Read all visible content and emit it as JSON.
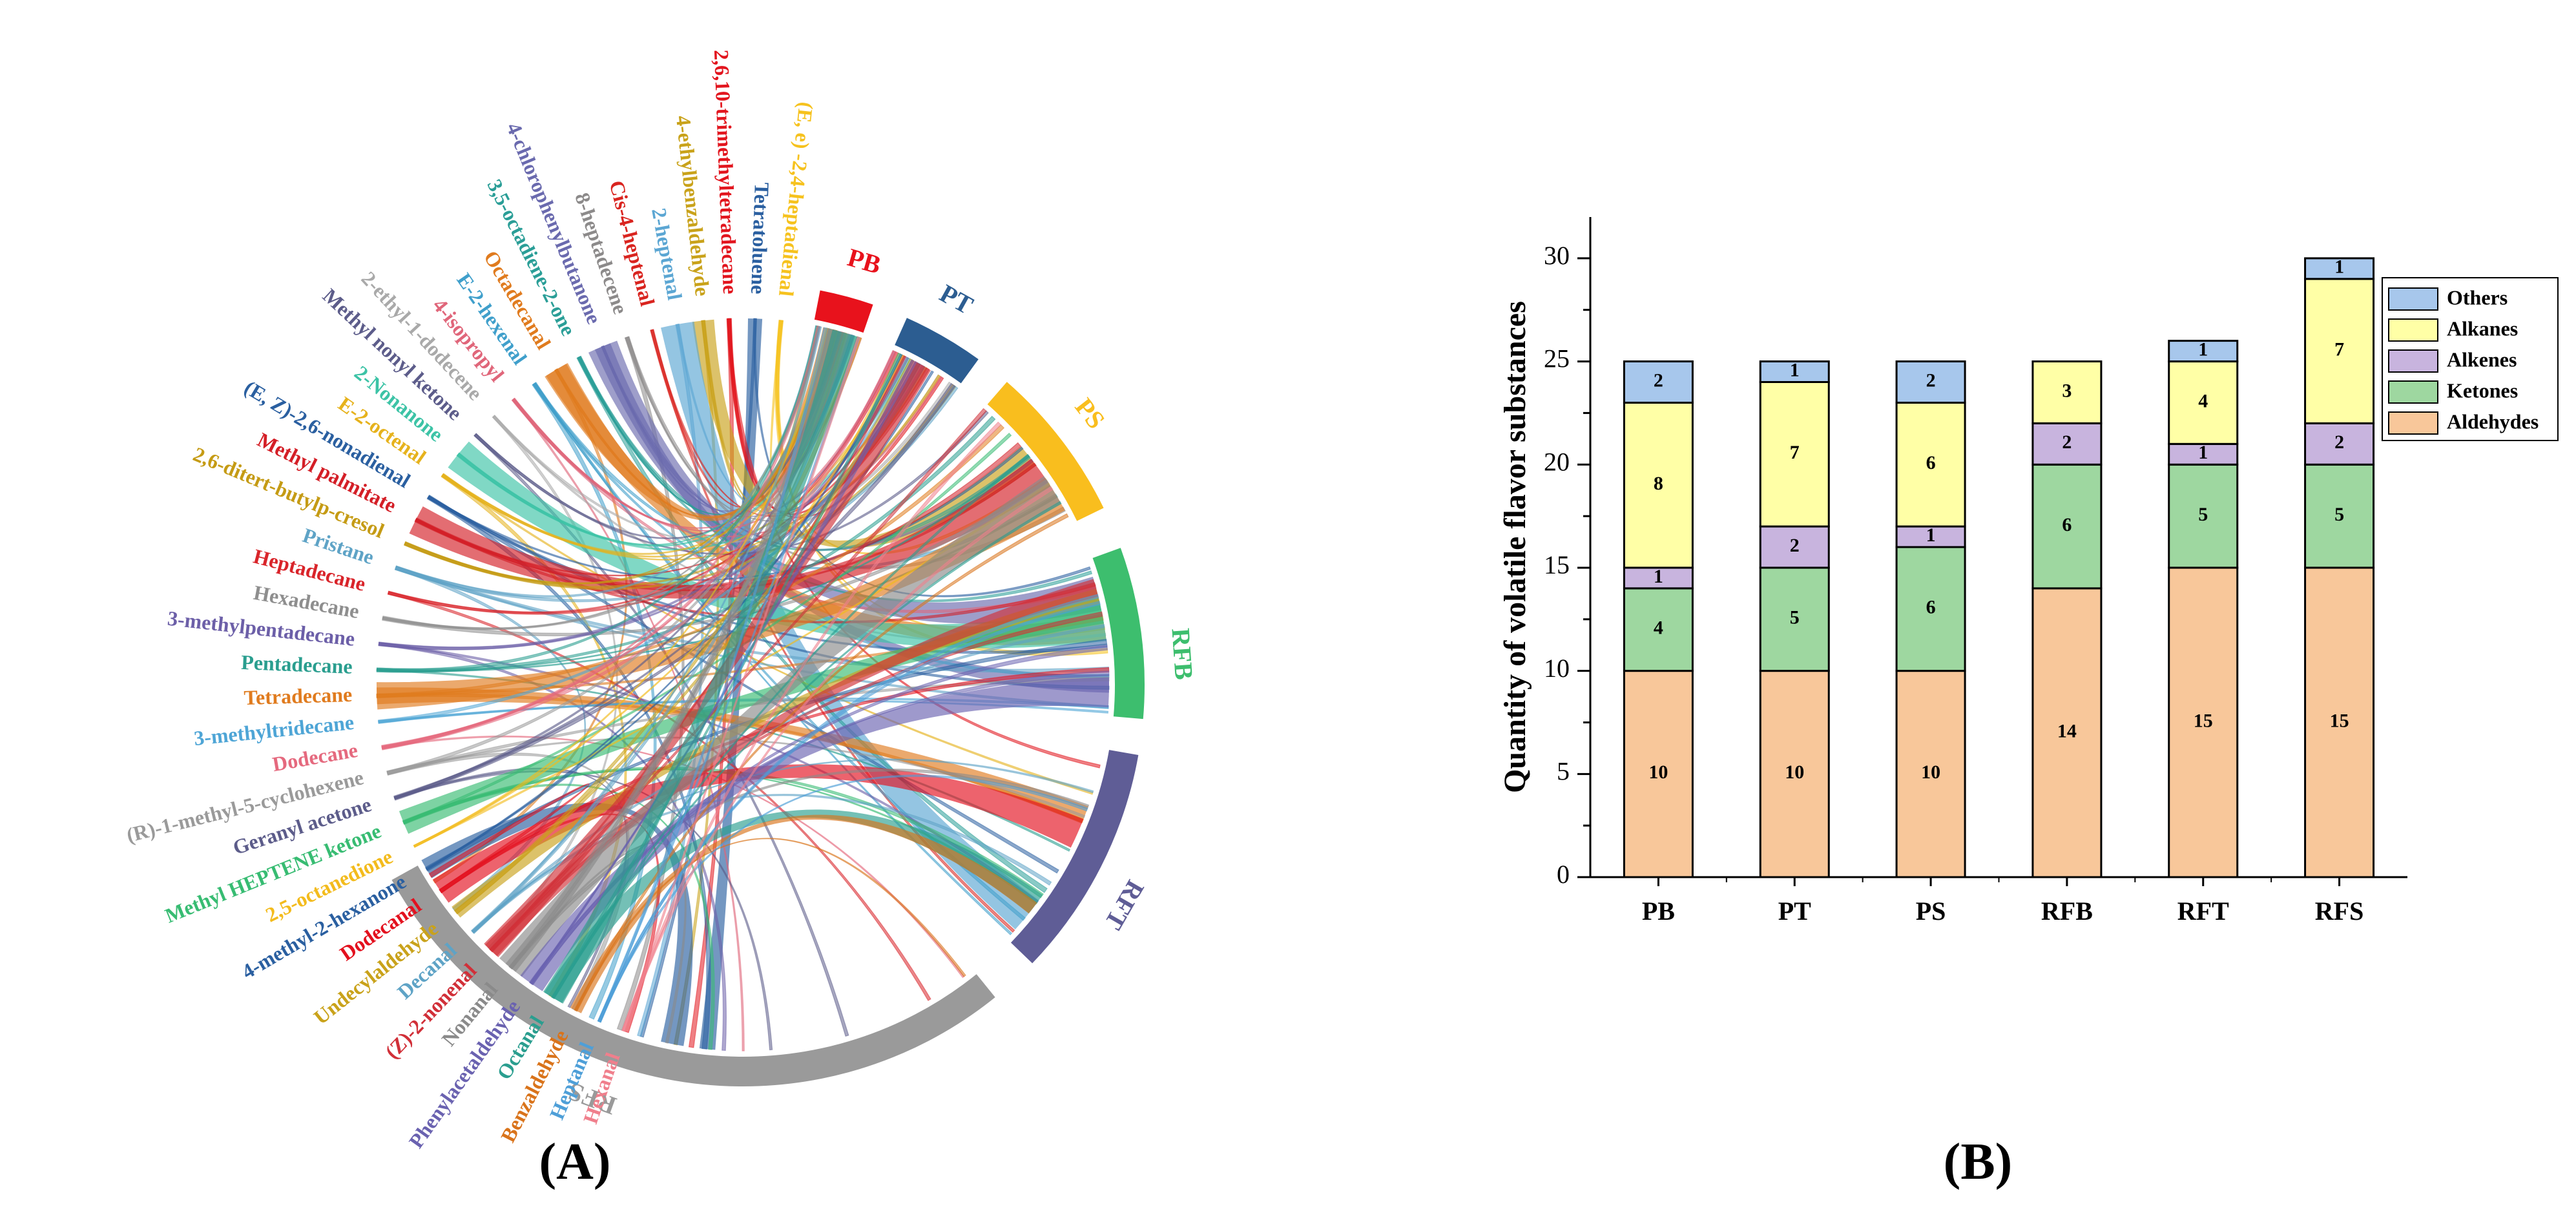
{
  "panels": {
    "a_label": "(A)",
    "b_label": "(B)"
  },
  "colors": {
    "aldehydes": "#F8C79A",
    "ketones": "#9ED7A0",
    "alkenes": "#C8B4DE",
    "alkanes": "#FFFFA6",
    "others": "#A7C7EC",
    "sample_PB": "#E8121C",
    "sample_PT": "#2C5D91",
    "sample_PS": "#F9BE1E",
    "sample_RFB": "#3DBE6E",
    "sample_RFT": "#5F5D96",
    "sample_RFS": "#9A9A9A"
  },
  "chart_data": [
    {
      "type": "chord",
      "panel": "A",
      "samples": [
        "PB",
        "PT",
        "PS",
        "RFB",
        "RFT",
        "RFS"
      ],
      "compounds": [
        {
          "name": "(E, e) -2,4-heptadienal",
          "color": "#F6C21E"
        },
        {
          "name": "Tetratoluene",
          "color": "#2A5FA0"
        },
        {
          "name": "2,6,10-trimethyltetradecane",
          "color": "#E2151E"
        },
        {
          "name": "4-ethylbenzaldehyde",
          "color": "#C9A21A"
        },
        {
          "name": "2-heptenal",
          "color": "#5BA6D3"
        },
        {
          "name": "Cis-4-heptenal",
          "color": "#D9241F"
        },
        {
          "name": "8-heptadecene",
          "color": "#8C8A8A"
        },
        {
          "name": "4-chlorophenylbutanone",
          "color": "#6A6AAE"
        },
        {
          "name": "3,5-octadiene-2-one",
          "color": "#2A9E97"
        },
        {
          "name": "Octadecanal",
          "color": "#E07B1E"
        },
        {
          "name": "E-2-hexenal",
          "color": "#3F9FCB"
        },
        {
          "name": "4-isopropyl",
          "color": "#E0667A"
        },
        {
          "name": "2-ethyl-1-dodecene",
          "color": "#A9A9A9"
        },
        {
          "name": "Methyl nonyl ketone",
          "color": "#5C5C8A"
        },
        {
          "name": "2-Nonanone",
          "color": "#3CC3A6"
        },
        {
          "name": "E-2-octenal",
          "color": "#E6B21C"
        },
        {
          "name": "(E, Z)-2,6-nonadienal",
          "color": "#2A5FA0"
        },
        {
          "name": "Methyl palmitate",
          "color": "#D41E26"
        },
        {
          "name": "2,6-ditert-butylp-cresol",
          "color": "#C59B14"
        },
        {
          "name": "Pristane",
          "color": "#5EA3C6"
        },
        {
          "name": "Heptadecane",
          "color": "#D9242A"
        },
        {
          "name": "Hexadecane",
          "color": "#8E8E8E"
        },
        {
          "name": "3-methylpentadecane",
          "color": "#6C5FA8"
        },
        {
          "name": "Pentadecane",
          "color": "#2A9E8F"
        },
        {
          "name": "Tetradecane",
          "color": "#E07B1E"
        },
        {
          "name": "3-methyltridecane",
          "color": "#4EA5D6"
        },
        {
          "name": "Dodecane",
          "color": "#E5697E"
        },
        {
          "name": "(R)-1-methyl-5-cyclohexene",
          "color": "#9A9A9A"
        },
        {
          "name": "Geranyl acetone",
          "color": "#5C5C8A"
        },
        {
          "name": "Methyl HEPTENE ketone",
          "color": "#37BC72"
        },
        {
          "name": "2,5-octanedione",
          "color": "#F3BB1C"
        },
        {
          "name": "4-methyl-2-hexanone",
          "color": "#2A5FA0"
        },
        {
          "name": "Dodecanal",
          "color": "#E3101E"
        },
        {
          "name": "Undecylaldehyde",
          "color": "#C9A21A"
        },
        {
          "name": "Decanal",
          "color": "#5EA3C6"
        },
        {
          "name": "(Z)-2-nonenal",
          "color": "#D12F38"
        },
        {
          "name": "Nonanal",
          "color": "#8A8A8A"
        },
        {
          "name": "Phenylacetaldehyde",
          "color": "#6A62B0"
        },
        {
          "name": "Octanal",
          "color": "#2A9E8F"
        },
        {
          "name": "Benzaldehyde",
          "color": "#D9731A"
        },
        {
          "name": "Heptanal",
          "color": "#4E9FD8"
        },
        {
          "name": "Hexanal",
          "color": "#F07F8C"
        }
      ]
    },
    {
      "type": "bar",
      "stacked": true,
      "panel": "B",
      "categories": [
        "PB",
        "PT",
        "PS",
        "RFB",
        "RFT",
        "RFS"
      ],
      "series": [
        {
          "name": "Aldehydes",
          "values": [
            10,
            10,
            10,
            14,
            15,
            15
          ]
        },
        {
          "name": "Ketones",
          "values": [
            4,
            5,
            6,
            6,
            5,
            5
          ]
        },
        {
          "name": "Alkenes",
          "values": [
            1,
            2,
            1,
            2,
            1,
            2
          ]
        },
        {
          "name": "Alkanes",
          "values": [
            8,
            7,
            6,
            3,
            4,
            7
          ]
        },
        {
          "name": "Others",
          "values": [
            2,
            1,
            2,
            0,
            1,
            1
          ]
        }
      ],
      "legend_order": [
        "Others",
        "Alkanes",
        "Alkenes",
        "Ketones",
        "Aldehydes"
      ],
      "ylabel": "Quantity of volatile flavor substances",
      "xlabel": "",
      "ylim": [
        0,
        32
      ],
      "yticks": [
        0,
        5,
        10,
        15,
        20,
        25,
        30
      ],
      "legend_position": "top-right"
    }
  ]
}
